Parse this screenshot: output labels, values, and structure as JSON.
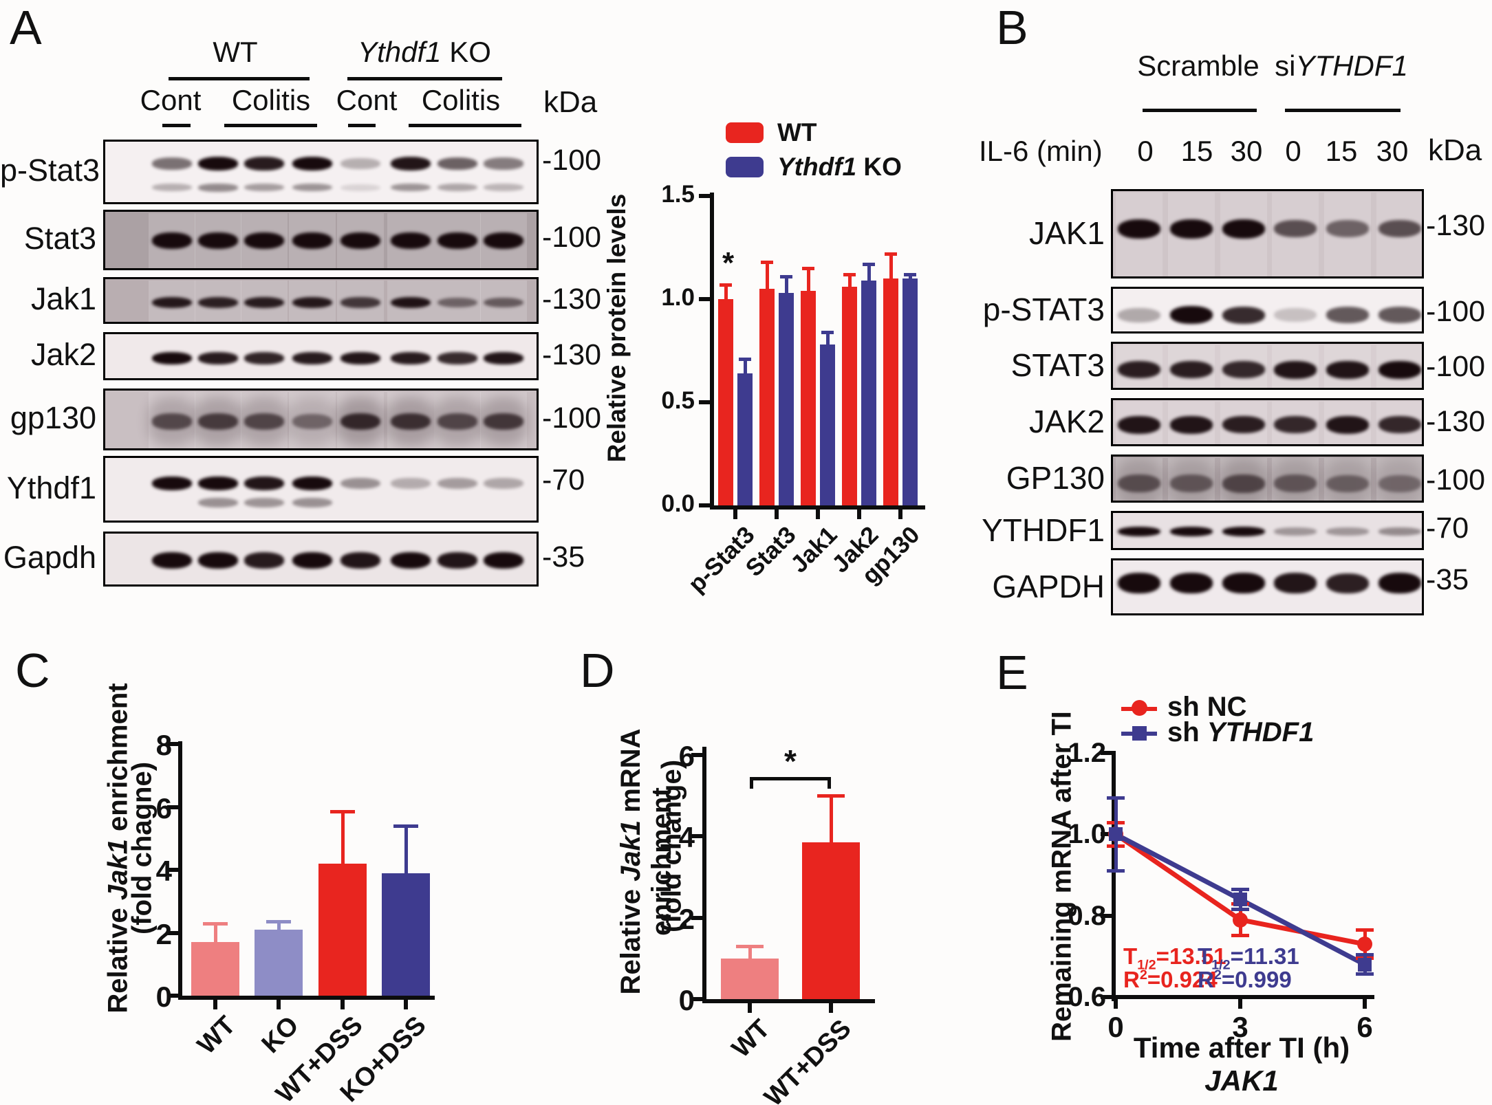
{
  "blot_a": {
    "panel_label": "A",
    "group_headers": [
      {
        "text": "WT"
      },
      {
        "italic": "Ythdf1",
        "rest": " KO"
      }
    ],
    "lane_headers": [
      "Cont",
      "Colitis",
      "Cont",
      "Colitis"
    ],
    "kda_title": "kDa",
    "rows": [
      {
        "label": "p-Stat3",
        "kda": "-100",
        "bg": "#f5f0f1",
        "lanes": [
          0.55,
          1,
          0.92,
          1,
          0.28,
          0.95,
          0.62,
          0.5
        ],
        "lanes2": [
          0.35,
          0.55,
          0.45,
          0.5,
          0.15,
          0.5,
          0.4,
          0.32
        ]
      },
      {
        "label": "Stat3",
        "kda": "-100",
        "bg": "#aba1a4",
        "lanes": [
          1,
          1,
          1,
          1,
          1,
          1,
          1,
          1
        ]
      },
      {
        "label": "Jak1",
        "kda": "-130",
        "bg": "#b9aeb1",
        "lanes": [
          0.92,
          0.88,
          0.9,
          0.92,
          0.75,
          0.95,
          0.5,
          0.55
        ]
      },
      {
        "label": "Jak2",
        "kda": "-130",
        "bg": "#f0e9ea",
        "lanes": [
          1,
          0.92,
          0.88,
          0.92,
          0.95,
          0.92,
          0.85,
          0.95
        ]
      },
      {
        "label": "gp130",
        "kda": "-100",
        "bg": "#c9bfc2",
        "lanes": [
          0.6,
          0.68,
          0.62,
          0.45,
          0.8,
          0.75,
          0.62,
          0.7
        ]
      },
      {
        "label": "Ythdf1",
        "kda": "-70",
        "bg": "#f1ebec",
        "lanes": [
          1,
          1,
          0.95,
          1,
          0.4,
          0.28,
          0.35,
          0.3
        ],
        "lanes2": [
          0,
          0.5,
          0.48,
          0.5,
          0,
          0,
          0,
          0
        ]
      },
      {
        "label": "Gapdh",
        "kda": "-35",
        "bg": "#ece5e6",
        "lanes": [
          1,
          1,
          0.92,
          1,
          0.95,
          1,
          0.95,
          1
        ]
      }
    ]
  },
  "blot_b": {
    "panel_label": "B",
    "group_headers": [
      {
        "text": "Scramble"
      },
      {
        "pre": "si",
        "italic": "YTHDF1"
      }
    ],
    "row_header": "IL-6 (min)",
    "lane_times": [
      "0",
      "15",
      "30",
      "0",
      "15",
      "30"
    ],
    "kda_title": "kDa",
    "rows": [
      {
        "label": "JAK1",
        "kda": "-130",
        "bg": "#cfc5c8",
        "lanes": [
          1,
          1,
          1,
          0.65,
          0.55,
          0.65
        ]
      },
      {
        "label": "p-STAT3",
        "kda": "-100",
        "bg": "#f4eff0",
        "lanes": [
          0.3,
          1,
          0.85,
          0.2,
          0.65,
          0.65
        ]
      },
      {
        "label": "STAT3",
        "kda": "-100",
        "bg": "#d8ced1",
        "lanes": [
          0.9,
          0.9,
          0.85,
          0.95,
          0.95,
          1
        ]
      },
      {
        "label": "JAK2",
        "kda": "-130",
        "bg": "#d5cbce",
        "lanes": [
          0.95,
          0.95,
          0.9,
          0.85,
          0.95,
          0.85
        ]
      },
      {
        "label": "GP130",
        "kda": "-100",
        "bg": "#b5abae",
        "lanes": [
          0.55,
          0.5,
          0.6,
          0.5,
          0.45,
          0.4
        ]
      },
      {
        "label": "YTHDF1",
        "kda": "-70",
        "bg": "#e8e1e3",
        "lanes": [
          1,
          1,
          1,
          0.35,
          0.35,
          0.4
        ]
      },
      {
        "label": "GAPDH",
        "kda": "-35",
        "bg": "#f0eaec",
        "lanes": [
          1,
          1,
          1,
          0.95,
          0.9,
          1
        ]
      }
    ]
  },
  "chart_data": [
    {
      "id": "A_bars",
      "type": "bar",
      "title": "",
      "ylabel": "Relative protein levels",
      "ylim": [
        0,
        1.5
      ],
      "yticks": [
        0,
        0.5,
        1,
        1.5
      ],
      "ytick_labels": [
        "0.0",
        "0.5",
        "1.0",
        "1.5"
      ],
      "categories": [
        "p-Stat3",
        "Stat3",
        "Jak1",
        "Jak2",
        "gp130"
      ],
      "series": [
        {
          "name": "WT",
          "color": "#E8251F",
          "values": [
            1.0,
            1.05,
            1.04,
            1.06,
            1.1
          ],
          "errors": [
            0.07,
            0.13,
            0.11,
            0.06,
            0.12
          ]
        },
        {
          "name_italic": "Ythdf1",
          "name_rest": " KO",
          "color": "#3E3B8F",
          "values": [
            0.64,
            1.03,
            0.78,
            1.09,
            1.1
          ],
          "errors": [
            0.07,
            0.08,
            0.06,
            0.08,
            0.02
          ]
        }
      ],
      "significance": {
        "label": "*",
        "category": "p-Stat3"
      },
      "legend_position": "top-left",
      "grid": false
    },
    {
      "id": "C_bars",
      "panel_label": "C",
      "type": "bar",
      "ylabel1_pre": "Relative ",
      "ylabel1_italic": "Jak1",
      "ylabel1_post": " enrichment",
      "ylabel2": "(fold chagne)",
      "ylim": [
        0,
        8
      ],
      "yticks": [
        0,
        2,
        4,
        6,
        8
      ],
      "ytick_labels": [
        "0",
        "2",
        "4",
        "6",
        "8"
      ],
      "categories": [
        "WT",
        "KO",
        "WT+DSS",
        "KO+DSS"
      ],
      "values": [
        1.7,
        2.1,
        4.2,
        3.9
      ],
      "errors": [
        0.6,
        0.27,
        1.65,
        1.5
      ],
      "colors": [
        "#EE7F80",
        "#8E8DC6",
        "#E8251F",
        "#3E3B8F"
      ],
      "grid": false
    },
    {
      "id": "D_bars",
      "panel_label": "D",
      "type": "bar",
      "ylabel1_pre": "Relative ",
      "ylabel1_italic": "Jak1",
      "ylabel1_post": " mRNA enrichment",
      "ylabel2": "(fold change)",
      "ylim": [
        0,
        6
      ],
      "yticks": [
        0,
        2,
        4,
        6
      ],
      "ytick_labels": [
        "0",
        "2",
        "4",
        "6"
      ],
      "categories": [
        "WT",
        "WT+DSS"
      ],
      "values": [
        1.0,
        3.85
      ],
      "errors": [
        0.3,
        1.15
      ],
      "colors": [
        "#EE7F80",
        "#E8251F"
      ],
      "significance": {
        "label": "*",
        "between": [
          "WT",
          "WT+DSS"
        ]
      },
      "grid": false
    },
    {
      "id": "E_line",
      "panel_label": "E",
      "type": "line",
      "ylabel": "Remaining mRNA after TI",
      "xlabel": "Time after TI (h)",
      "xlabel2_italic": "JAK1",
      "ylim": [
        0.6,
        1.2
      ],
      "yticks": [
        0.6,
        0.8,
        1.0,
        1.2
      ],
      "ytick_labels": [
        "0.6",
        "0.8",
        "1.0",
        "1.2"
      ],
      "x": [
        0,
        3,
        6
      ],
      "xtick_labels": [
        "0",
        "3",
        "6"
      ],
      "series": [
        {
          "name": "sh NC",
          "color": "#E8241E",
          "marker": "circle",
          "values": [
            1.0,
            0.79,
            0.73
          ],
          "errors": [
            0.03,
            0.04,
            0.035
          ],
          "ann": {
            "t": [
              "T",
              "1/2",
              "=13.51"
            ],
            "r": [
              "R",
              "2",
              "=0.924"
            ]
          }
        },
        {
          "name_pre": "sh ",
          "name_italic": "YTHDF1",
          "color": "#3E3B8F",
          "marker": "square",
          "values": [
            1.0,
            0.84,
            0.68
          ],
          "errors": [
            0.09,
            0.025,
            0.025
          ],
          "ann": {
            "t": [
              "T",
              "1/2",
              "=11.31"
            ],
            "r": [
              "R",
              "2",
              "=0.999"
            ]
          }
        }
      ],
      "legend_position": "top"
    }
  ]
}
